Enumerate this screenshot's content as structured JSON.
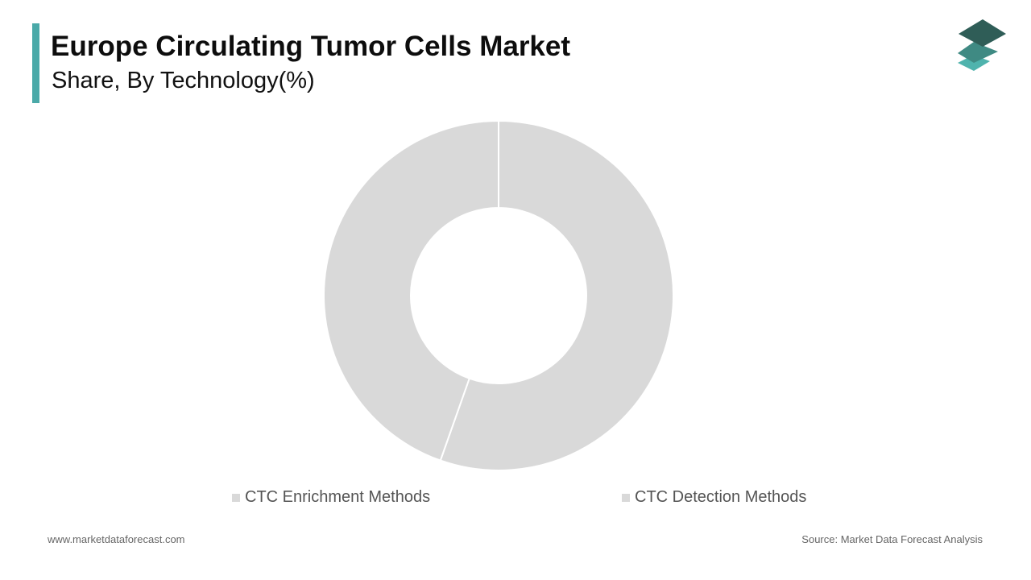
{
  "header": {
    "title": "Europe Circulating Tumor Cells Market",
    "subtitle": "Share, By Technology(%)",
    "accent_color": "#4aa9a8"
  },
  "logo": {
    "icon": "stacked-layers-logo",
    "colors": [
      "#2f5d57",
      "#3f8a83",
      "#4fb3ad"
    ]
  },
  "chart_data": {
    "type": "pie",
    "donut": true,
    "title": "",
    "series": [
      {
        "name": "CTC Enrichment Methods",
        "value": 44.6,
        "color": "#d9d9d9"
      },
      {
        "name": "CTC Detection Methods",
        "value": 55.4,
        "color": "#d9d9d9"
      }
    ],
    "start": "12 o'clock",
    "direction": "clockwise",
    "slice_separator_color": "#ffffff",
    "legend_placement": "bottom"
  },
  "legend": [
    {
      "label": "CTC Enrichment Methods",
      "color": "#d9d9d9"
    },
    {
      "label": "CTC Detection Methods",
      "color": "#d9d9d9"
    }
  ],
  "footer": {
    "website": "www.marketdataforecast.com",
    "source": "Source: Market Data Forecast Analysis"
  }
}
